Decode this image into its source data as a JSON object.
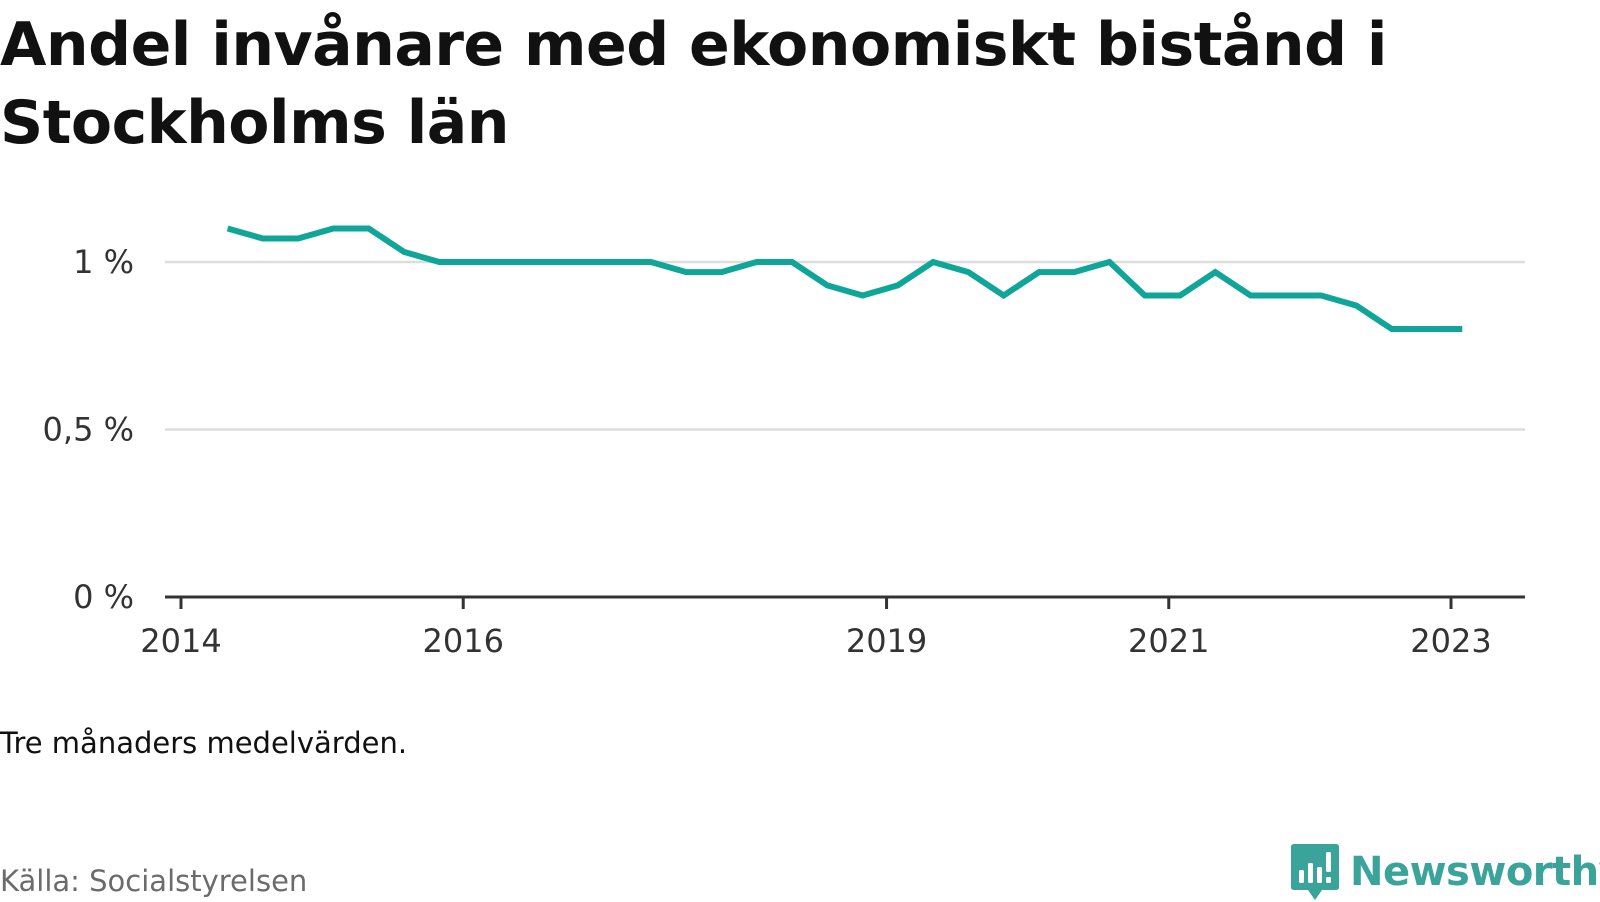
{
  "title": "Andel invånare med ekonomiskt bistånd i Stockholms län",
  "note": "Tre månaders medelvärden.",
  "source": "Källa: Socialstyrelsen",
  "logo": {
    "text": "Newsworthy",
    "icon": "newsworthy-logo-icon",
    "color": "#3aa39a"
  },
  "colors": {
    "line": "#0fa699",
    "grid": "#dddddd",
    "axis": "#333333"
  },
  "chart_data": {
    "type": "line",
    "title": "Andel invånare med ekonomiskt bistånd i Stockholms län",
    "xlabel": "",
    "ylabel": "",
    "ylim": [
      0,
      1.1
    ],
    "grid": true,
    "y_ticks": [
      {
        "value": 0,
        "label": "0 %"
      },
      {
        "value": 0.5,
        "label": "0,5 %"
      },
      {
        "value": 1,
        "label": "1 %"
      }
    ],
    "x_ticks": [
      {
        "value": 2014.0,
        "label": "2014"
      },
      {
        "value": 2016.0,
        "label": "2016"
      },
      {
        "value": 2019.0,
        "label": "2019"
      },
      {
        "value": 2021.0,
        "label": "2021"
      },
      {
        "value": 2023.0,
        "label": "2023"
      }
    ],
    "series": [
      {
        "x": [
          2014.33,
          2014.58,
          2014.83,
          2015.08,
          2015.33,
          2015.58,
          2015.83,
          2016.08,
          2016.33,
          2016.58,
          2016.83,
          2017.08,
          2017.33,
          2017.58,
          2017.83,
          2018.08,
          2018.33,
          2018.58,
          2018.83,
          2019.08,
          2019.33,
          2019.58,
          2019.83,
          2020.08,
          2020.33,
          2020.58,
          2020.83,
          2021.08,
          2021.33,
          2021.58,
          2021.83,
          2022.08,
          2022.33,
          2022.58,
          2022.83,
          2023.08
        ],
        "values": [
          1.1,
          1.07,
          1.07,
          1.1,
          1.1,
          1.03,
          1.0,
          1.0,
          1.0,
          1.0,
          1.0,
          1.0,
          1.0,
          0.97,
          0.97,
          1.0,
          1.0,
          0.93,
          0.9,
          0.93,
          1.0,
          0.97,
          0.9,
          0.97,
          0.97,
          1.0,
          0.9,
          0.9,
          0.97,
          0.9,
          0.9,
          0.9,
          0.87,
          0.8,
          0.8,
          0.8
        ]
      }
    ]
  }
}
